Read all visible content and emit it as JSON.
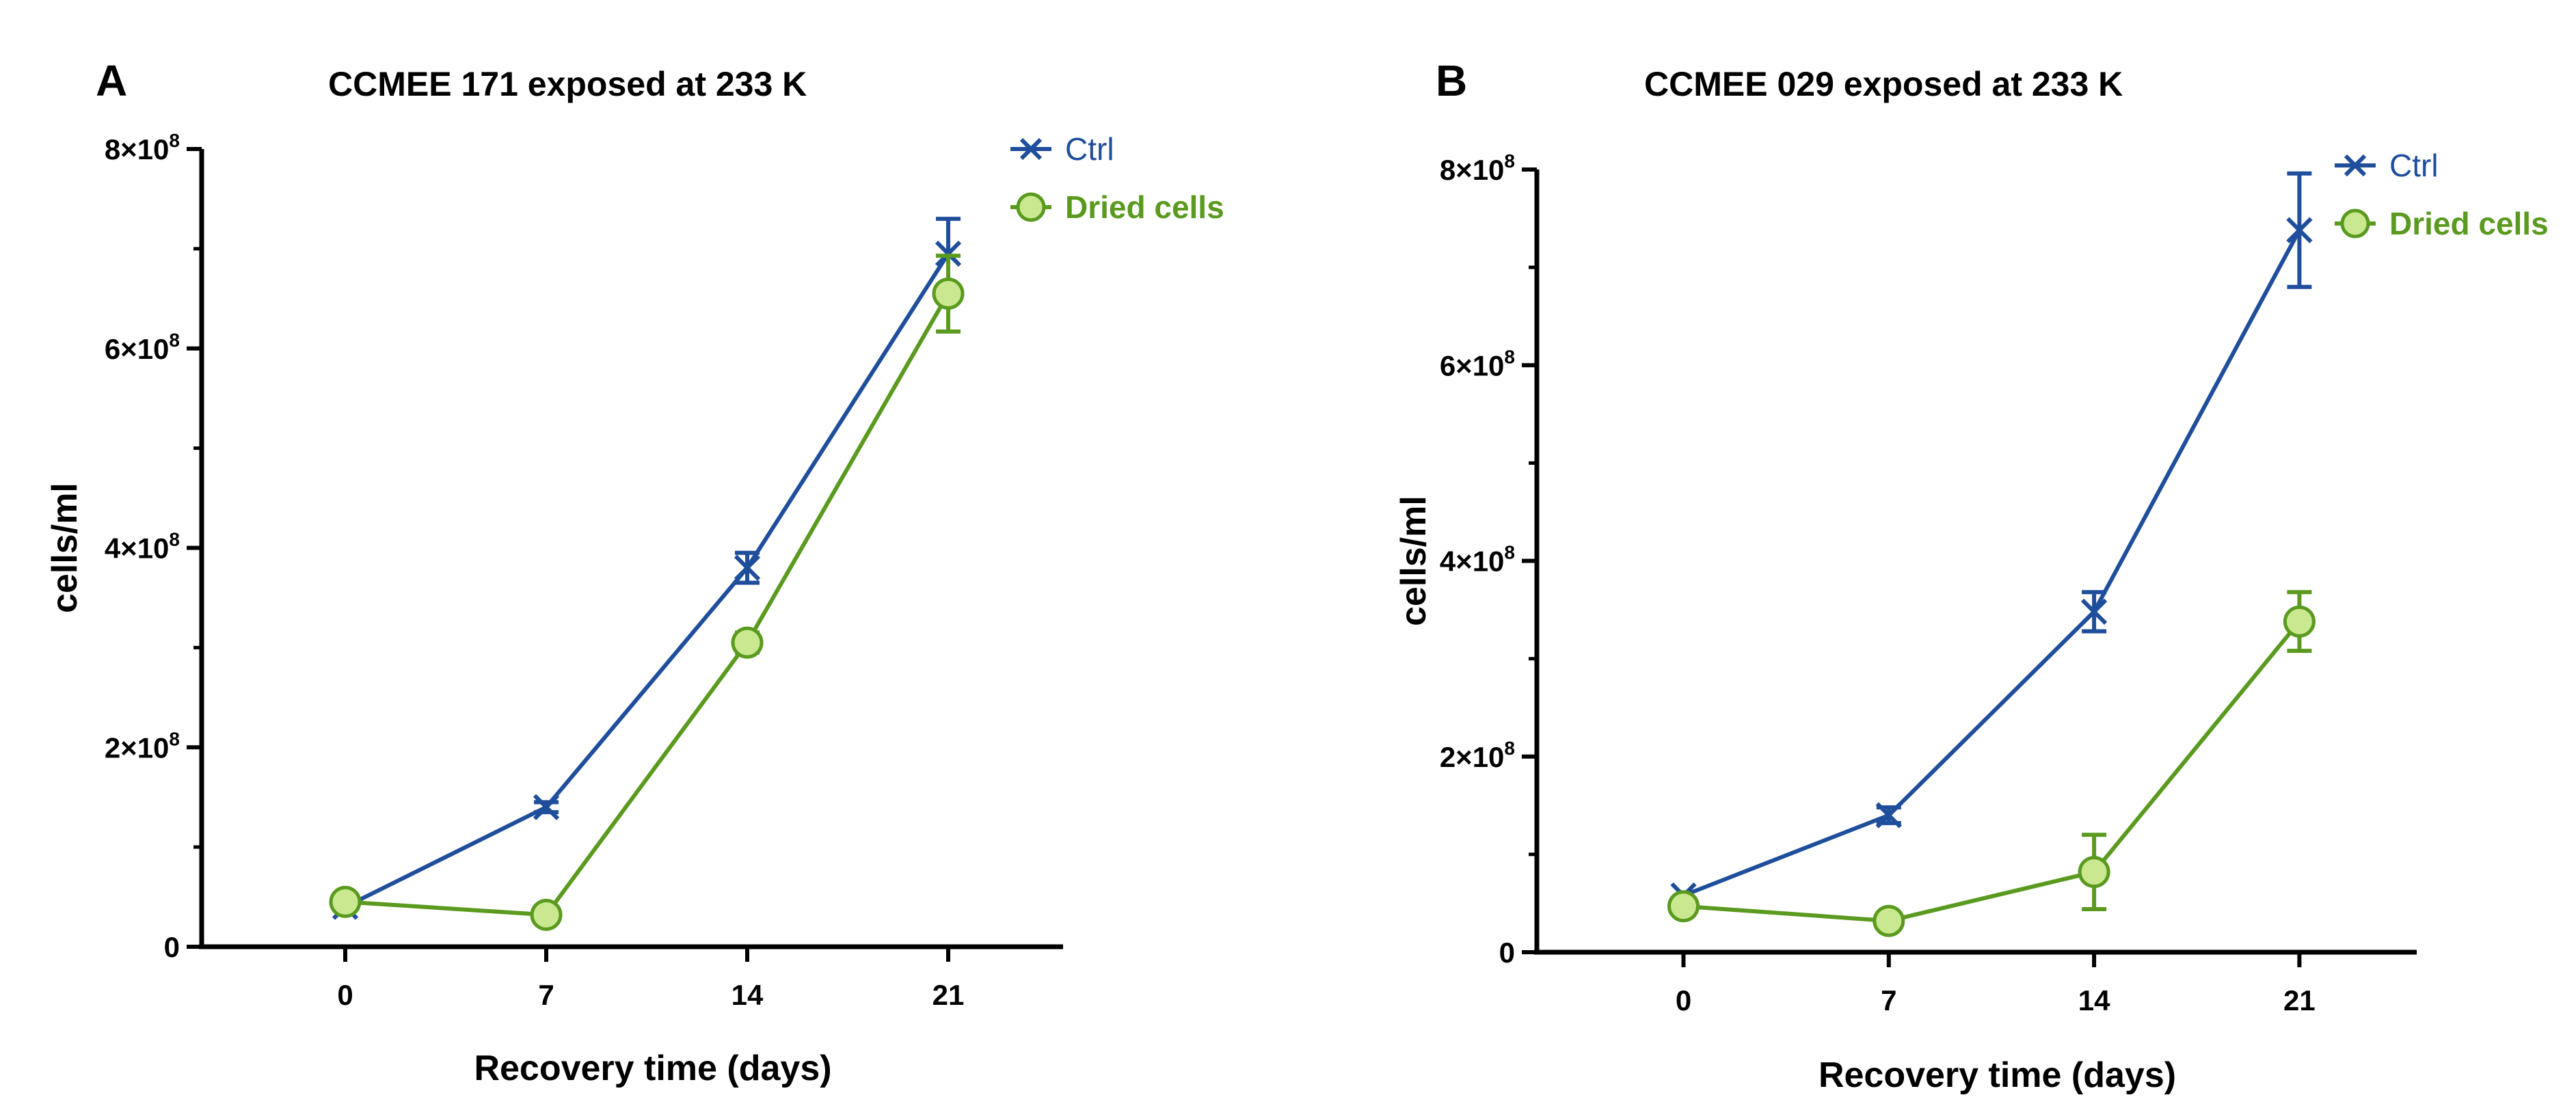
{
  "chart_data": [
    {
      "type": "line",
      "panel": "A",
      "title": "CCMEE 171 exposed at 233 K",
      "xlabel": "Recovery time (days)",
      "ylabel": "cells/ml",
      "x": [
        0,
        7,
        14,
        21
      ],
      "xlim": [
        -5,
        25
      ],
      "ylim": [
        0,
        800000000
      ],
      "yticks": [
        0,
        200000000,
        400000000,
        600000000,
        800000000
      ],
      "ytick_labels": [
        "0",
        "2×10^8",
        "4×10^8",
        "6×10^8",
        "8×10^8"
      ],
      "legend": "top-right",
      "series": [
        {
          "name": "Ctrl",
          "marker": "x",
          "color": "#1f4e9c",
          "values": [
            40000000,
            140000000,
            380000000,
            695000000
          ],
          "errors": [
            3000000,
            5000000,
            15000000,
            35000000
          ]
        },
        {
          "name": "Dried cells",
          "marker": "circle",
          "color": "#5a9a1e",
          "values": [
            45000000,
            32000000,
            305000000,
            655000000
          ],
          "errors": [
            3000000,
            3000000,
            10000000,
            38000000
          ]
        }
      ]
    },
    {
      "type": "line",
      "panel": "B",
      "title": "CCMEE 029 exposed at 233 K",
      "xlabel": "Recovery time (days)",
      "ylabel": "cells/ml",
      "x": [
        0,
        7,
        14,
        21
      ],
      "xlim": [
        -5,
        25
      ],
      "ylim": [
        0,
        800000000
      ],
      "yticks": [
        0,
        200000000,
        400000000,
        600000000,
        800000000
      ],
      "ytick_labels": [
        "0",
        "2×10^8",
        "4×10^8",
        "6×10^8",
        "8×10^8"
      ],
      "legend": "top-right",
      "series": [
        {
          "name": "Ctrl",
          "marker": "x",
          "color": "#1f4e9c",
          "values": [
            58000000,
            140000000,
            348000000,
            738000000
          ],
          "errors": [
            3000000,
            8000000,
            20000000,
            58000000
          ]
        },
        {
          "name": "Dried cells",
          "marker": "circle",
          "color": "#5a9a1e",
          "values": [
            47000000,
            32000000,
            82000000,
            338000000
          ],
          "errors": [
            3000000,
            3000000,
            38000000,
            30000000
          ]
        }
      ]
    }
  ]
}
